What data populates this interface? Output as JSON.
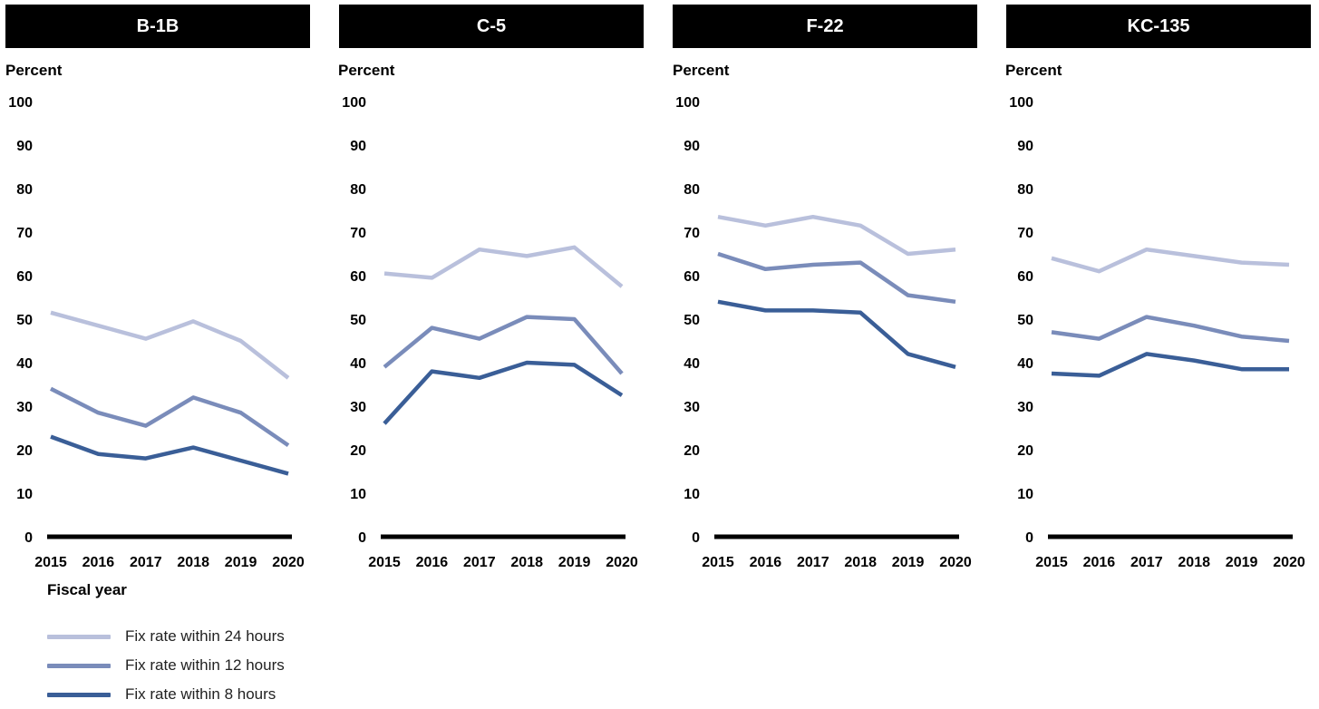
{
  "colors": {
    "fix_24": "#b9c0dc",
    "fix_12": "#7a8cba",
    "fix_8": "#3a5e97",
    "axis": "#000000",
    "title_bg": "#000000"
  },
  "xlabel": "Fiscal year",
  "legend": [
    {
      "name": "Fix rate within 24 hours",
      "color": "#b9c0dc"
    },
    {
      "name": "Fix rate within 12 hours",
      "color": "#7a8cba"
    },
    {
      "name": "Fix rate within 8 hours",
      "color": "#3a5e97"
    }
  ],
  "chart_data": [
    {
      "type": "line",
      "title": "B-1B",
      "ylabel": "Percent",
      "xlabel": "Fiscal year",
      "ylim": [
        0,
        100
      ],
      "yticks": [
        0,
        10,
        20,
        30,
        40,
        50,
        60,
        70,
        80,
        90,
        100
      ],
      "x": [
        "2015",
        "2016",
        "2017",
        "2018",
        "2019",
        "2020"
      ],
      "series": [
        {
          "name": "Fix rate within 24 hours",
          "values": [
            51.5,
            48.5,
            45.5,
            49.5,
            45,
            36.5
          ]
        },
        {
          "name": "Fix rate within 12 hours",
          "values": [
            34,
            28.5,
            25.5,
            32,
            28.5,
            21
          ]
        },
        {
          "name": "Fix rate within 8 hours",
          "values": [
            23,
            19,
            18,
            20.5,
            17.5,
            14.5
          ]
        }
      ]
    },
    {
      "type": "line",
      "title": "C-5",
      "ylabel": "Percent",
      "xlabel": "Fiscal year",
      "ylim": [
        0,
        100
      ],
      "yticks": [
        0,
        10,
        20,
        30,
        40,
        50,
        60,
        70,
        80,
        90,
        100
      ],
      "x": [
        "2015",
        "2016",
        "2017",
        "2018",
        "2019",
        "2020"
      ],
      "series": [
        {
          "name": "Fix rate within 24 hours",
          "values": [
            60.5,
            59.5,
            66,
            64.5,
            66.5,
            57.5
          ]
        },
        {
          "name": "Fix rate within 12 hours",
          "values": [
            39,
            48,
            45.5,
            50.5,
            50,
            37.5
          ]
        },
        {
          "name": "Fix rate within 8 hours",
          "values": [
            26,
            38,
            36.5,
            40,
            39.5,
            32.5
          ]
        }
      ]
    },
    {
      "type": "line",
      "title": "F-22",
      "ylabel": "Percent",
      "xlabel": "Fiscal year",
      "ylim": [
        0,
        100
      ],
      "yticks": [
        0,
        10,
        20,
        30,
        40,
        50,
        60,
        70,
        80,
        90,
        100
      ],
      "x": [
        "2015",
        "2016",
        "2017",
        "2018",
        "2019",
        "2020"
      ],
      "series": [
        {
          "name": "Fix rate within 24 hours",
          "values": [
            73.5,
            71.5,
            73.5,
            71.5,
            65,
            66
          ]
        },
        {
          "name": "Fix rate within 12 hours",
          "values": [
            65,
            61.5,
            62.5,
            63,
            55.5,
            54
          ]
        },
        {
          "name": "Fix rate within 8 hours",
          "values": [
            54,
            52,
            52,
            51.5,
            42,
            39
          ]
        }
      ]
    },
    {
      "type": "line",
      "title": "KC-135",
      "ylabel": "Percent",
      "xlabel": "Fiscal year",
      "ylim": [
        0,
        100
      ],
      "yticks": [
        0,
        10,
        20,
        30,
        40,
        50,
        60,
        70,
        80,
        90,
        100
      ],
      "x": [
        "2015",
        "2016",
        "2017",
        "2018",
        "2019",
        "2020"
      ],
      "series": [
        {
          "name": "Fix rate within 24 hours",
          "values": [
            64,
            61,
            66,
            64.5,
            63,
            62.5
          ]
        },
        {
          "name": "Fix rate within 12 hours",
          "values": [
            47,
            45.5,
            50.5,
            48.5,
            46,
            45
          ]
        },
        {
          "name": "Fix rate within 8 hours",
          "values": [
            37.5,
            37,
            42,
            40.5,
            38.5,
            38.5
          ]
        }
      ]
    }
  ]
}
